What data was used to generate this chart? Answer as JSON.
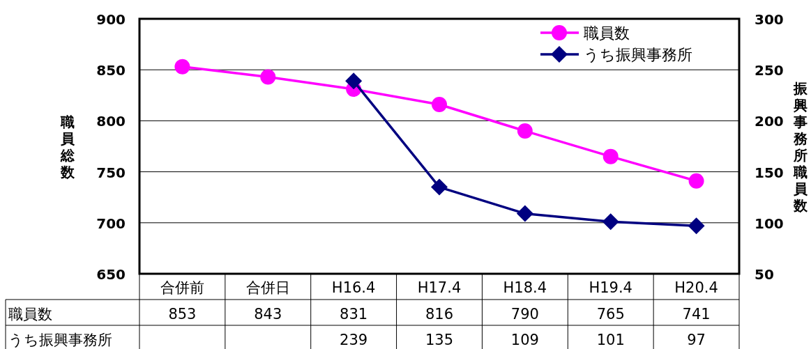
{
  "chart_data": {
    "type": "line",
    "ylabel": "職員総数",
    "y2label": "振興事務所職員数",
    "categories": [
      "合併前",
      "合併日",
      "H16.4",
      "H17.4",
      "H18.4",
      "H19.4",
      "H20.4"
    ],
    "series": [
      {
        "name": "職員数",
        "color": "#ff00ff",
        "marker": "circle",
        "values": [
          853,
          843,
          831,
          816,
          790,
          765,
          741
        ]
      },
      {
        "name": "うち振興事務所",
        "color": "#000080",
        "marker": "diamond",
        "axis": "y2",
        "values": [
          null,
          null,
          239,
          135,
          109,
          101,
          97
        ]
      }
    ],
    "ylim": [
      650,
      900
    ],
    "yticks": [
      650,
      700,
      750,
      800,
      850,
      900
    ],
    "y2lim": [
      50,
      300
    ],
    "y2ticks": [
      50,
      100,
      150,
      200,
      250,
      300
    ],
    "grid": "y",
    "legend": "top right",
    "data_labels": true
  }
}
